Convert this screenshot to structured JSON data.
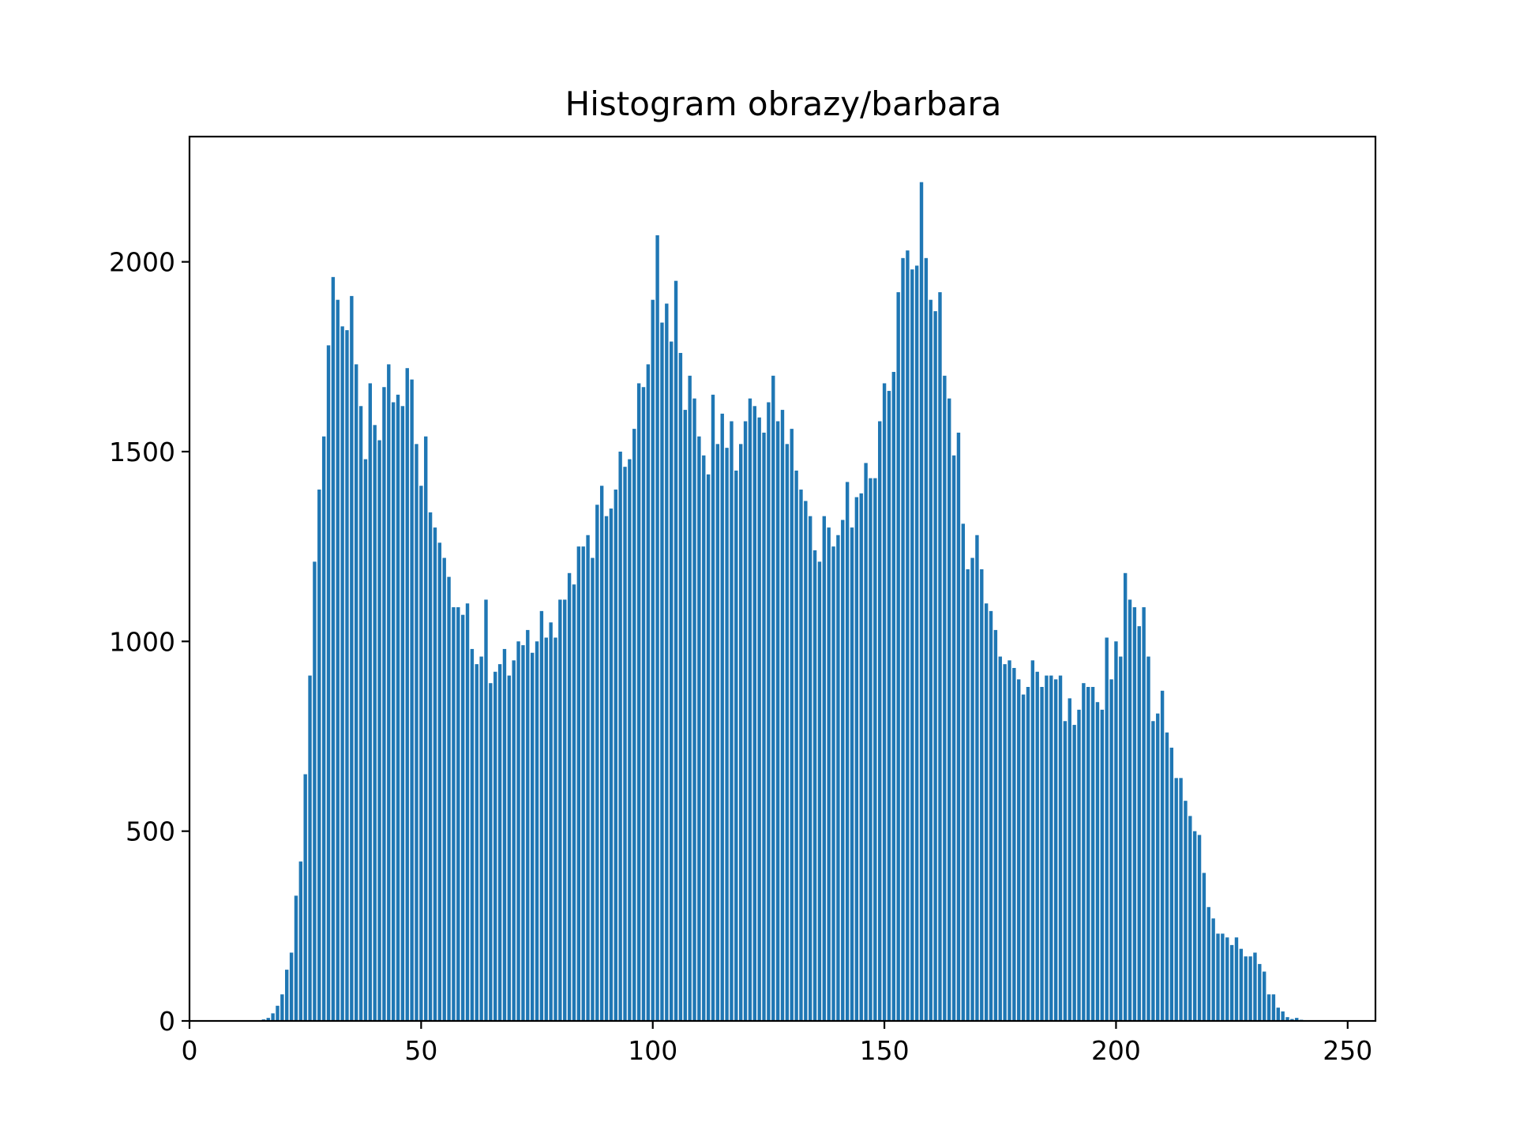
{
  "chart_data": {
    "type": "bar",
    "title": "Histogram obrazy/barbara",
    "xlabel": "",
    "ylabel": "",
    "xlim": [
      0,
      256
    ],
    "ylim": [
      0,
      2330
    ],
    "xticks": [
      0,
      50,
      100,
      150,
      200,
      250
    ],
    "yticks": [
      0,
      500,
      1000,
      1500,
      2000
    ],
    "grid": false,
    "legend": "none",
    "bar_color": "#1f77b4",
    "x_start": 0,
    "values": [
      0,
      0,
      0,
      0,
      0,
      0,
      0,
      0,
      0,
      0,
      0,
      0,
      0,
      0,
      0,
      2,
      4,
      8,
      20,
      40,
      70,
      135,
      180,
      330,
      420,
      650,
      910,
      1210,
      1400,
      1540,
      1780,
      1960,
      1900,
      1830,
      1820,
      1910,
      1730,
      1620,
      1480,
      1680,
      1570,
      1530,
      1670,
      1730,
      1630,
      1650,
      1620,
      1720,
      1690,
      1520,
      1410,
      1540,
      1340,
      1300,
      1260,
      1220,
      1170,
      1090,
      1090,
      1070,
      1100,
      980,
      940,
      960,
      1110,
      890,
      920,
      940,
      980,
      910,
      950,
      1000,
      990,
      1030,
      970,
      1000,
      1080,
      1010,
      1050,
      1010,
      1110,
      1110,
      1180,
      1150,
      1250,
      1250,
      1280,
      1220,
      1360,
      1410,
      1330,
      1350,
      1400,
      1500,
      1460,
      1480,
      1560,
      1680,
      1670,
      1730,
      1900,
      2070,
      1840,
      1890,
      1790,
      1950,
      1760,
      1610,
      1700,
      1640,
      1540,
      1490,
      1440,
      1650,
      1520,
      1600,
      1510,
      1580,
      1450,
      1520,
      1580,
      1640,
      1620,
      1590,
      1550,
      1630,
      1700,
      1580,
      1610,
      1520,
      1560,
      1450,
      1400,
      1370,
      1330,
      1240,
      1210,
      1330,
      1300,
      1250,
      1280,
      1320,
      1420,
      1300,
      1380,
      1390,
      1470,
      1430,
      1430,
      1580,
      1680,
      1660,
      1710,
      1920,
      2010,
      2030,
      1980,
      1990,
      2210,
      2010,
      1900,
      1870,
      1920,
      1700,
      1640,
      1490,
      1550,
      1310,
      1190,
      1220,
      1280,
      1190,
      1100,
      1080,
      1030,
      960,
      940,
      950,
      930,
      900,
      860,
      880,
      950,
      920,
      880,
      910,
      910,
      900,
      910,
      790,
      850,
      780,
      820,
      890,
      880,
      880,
      840,
      820,
      1010,
      900,
      1000,
      960,
      1180,
      1110,
      1090,
      1040,
      1090,
      960,
      790,
      810,
      870,
      760,
      720,
      640,
      640,
      580,
      540,
      500,
      490,
      390,
      300,
      270,
      230,
      230,
      220,
      200,
      220,
      190,
      170,
      170,
      180,
      150,
      130,
      70,
      70,
      35,
      25,
      10,
      5,
      8,
      3,
      0,
      0,
      0,
      0,
      0
    ]
  }
}
